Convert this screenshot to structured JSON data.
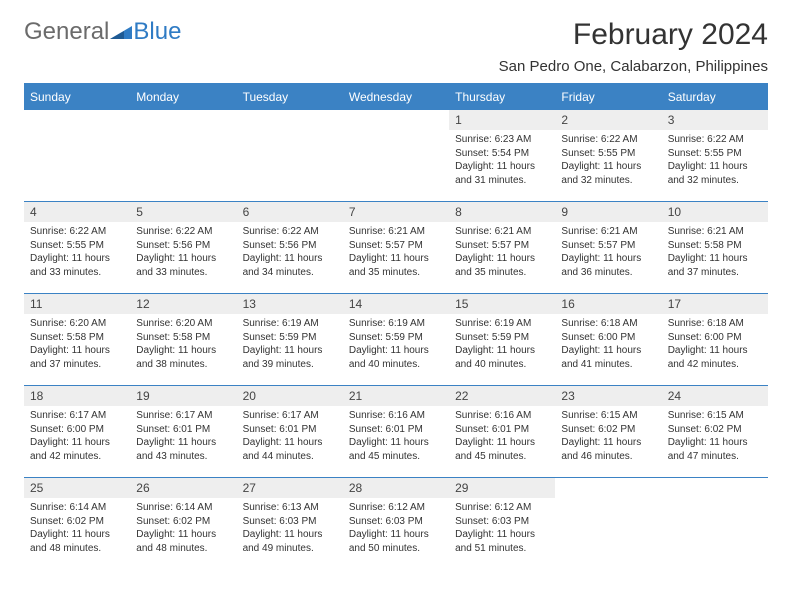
{
  "brand": {
    "word1": "General",
    "word2": "Blue"
  },
  "title": "February 2024",
  "location": "San Pedro One, Calabarzon, Philippines",
  "colors": {
    "header_bg": "#3b82c4",
    "header_text": "#ffffff",
    "daynum_bg": "#eeeeee",
    "border": "#3b82c4",
    "page_bg": "#ffffff",
    "text": "#333333",
    "brand_gray": "#6b6b6b",
    "brand_blue": "#2f7bc4"
  },
  "fonts": {
    "title_pt": 30,
    "location_pt": 15,
    "header_pt": 12,
    "body_pt": 10
  },
  "day_headers": [
    "Sunday",
    "Monday",
    "Tuesday",
    "Wednesday",
    "Thursday",
    "Friday",
    "Saturday"
  ],
  "weeks": [
    [
      {
        "n": "",
        "sunrise": "",
        "sunset": "",
        "daylight": ""
      },
      {
        "n": "",
        "sunrise": "",
        "sunset": "",
        "daylight": ""
      },
      {
        "n": "",
        "sunrise": "",
        "sunset": "",
        "daylight": ""
      },
      {
        "n": "",
        "sunrise": "",
        "sunset": "",
        "daylight": ""
      },
      {
        "n": "1",
        "sunrise": "Sunrise: 6:23 AM",
        "sunset": "Sunset: 5:54 PM",
        "daylight": "Daylight: 11 hours and 31 minutes."
      },
      {
        "n": "2",
        "sunrise": "Sunrise: 6:22 AM",
        "sunset": "Sunset: 5:55 PM",
        "daylight": "Daylight: 11 hours and 32 minutes."
      },
      {
        "n": "3",
        "sunrise": "Sunrise: 6:22 AM",
        "sunset": "Sunset: 5:55 PM",
        "daylight": "Daylight: 11 hours and 32 minutes."
      }
    ],
    [
      {
        "n": "4",
        "sunrise": "Sunrise: 6:22 AM",
        "sunset": "Sunset: 5:55 PM",
        "daylight": "Daylight: 11 hours and 33 minutes."
      },
      {
        "n": "5",
        "sunrise": "Sunrise: 6:22 AM",
        "sunset": "Sunset: 5:56 PM",
        "daylight": "Daylight: 11 hours and 33 minutes."
      },
      {
        "n": "6",
        "sunrise": "Sunrise: 6:22 AM",
        "sunset": "Sunset: 5:56 PM",
        "daylight": "Daylight: 11 hours and 34 minutes."
      },
      {
        "n": "7",
        "sunrise": "Sunrise: 6:21 AM",
        "sunset": "Sunset: 5:57 PM",
        "daylight": "Daylight: 11 hours and 35 minutes."
      },
      {
        "n": "8",
        "sunrise": "Sunrise: 6:21 AM",
        "sunset": "Sunset: 5:57 PM",
        "daylight": "Daylight: 11 hours and 35 minutes."
      },
      {
        "n": "9",
        "sunrise": "Sunrise: 6:21 AM",
        "sunset": "Sunset: 5:57 PM",
        "daylight": "Daylight: 11 hours and 36 minutes."
      },
      {
        "n": "10",
        "sunrise": "Sunrise: 6:21 AM",
        "sunset": "Sunset: 5:58 PM",
        "daylight": "Daylight: 11 hours and 37 minutes."
      }
    ],
    [
      {
        "n": "11",
        "sunrise": "Sunrise: 6:20 AM",
        "sunset": "Sunset: 5:58 PM",
        "daylight": "Daylight: 11 hours and 37 minutes."
      },
      {
        "n": "12",
        "sunrise": "Sunrise: 6:20 AM",
        "sunset": "Sunset: 5:58 PM",
        "daylight": "Daylight: 11 hours and 38 minutes."
      },
      {
        "n": "13",
        "sunrise": "Sunrise: 6:19 AM",
        "sunset": "Sunset: 5:59 PM",
        "daylight": "Daylight: 11 hours and 39 minutes."
      },
      {
        "n": "14",
        "sunrise": "Sunrise: 6:19 AM",
        "sunset": "Sunset: 5:59 PM",
        "daylight": "Daylight: 11 hours and 40 minutes."
      },
      {
        "n": "15",
        "sunrise": "Sunrise: 6:19 AM",
        "sunset": "Sunset: 5:59 PM",
        "daylight": "Daylight: 11 hours and 40 minutes."
      },
      {
        "n": "16",
        "sunrise": "Sunrise: 6:18 AM",
        "sunset": "Sunset: 6:00 PM",
        "daylight": "Daylight: 11 hours and 41 minutes."
      },
      {
        "n": "17",
        "sunrise": "Sunrise: 6:18 AM",
        "sunset": "Sunset: 6:00 PM",
        "daylight": "Daylight: 11 hours and 42 minutes."
      }
    ],
    [
      {
        "n": "18",
        "sunrise": "Sunrise: 6:17 AM",
        "sunset": "Sunset: 6:00 PM",
        "daylight": "Daylight: 11 hours and 42 minutes."
      },
      {
        "n": "19",
        "sunrise": "Sunrise: 6:17 AM",
        "sunset": "Sunset: 6:01 PM",
        "daylight": "Daylight: 11 hours and 43 minutes."
      },
      {
        "n": "20",
        "sunrise": "Sunrise: 6:17 AM",
        "sunset": "Sunset: 6:01 PM",
        "daylight": "Daylight: 11 hours and 44 minutes."
      },
      {
        "n": "21",
        "sunrise": "Sunrise: 6:16 AM",
        "sunset": "Sunset: 6:01 PM",
        "daylight": "Daylight: 11 hours and 45 minutes."
      },
      {
        "n": "22",
        "sunrise": "Sunrise: 6:16 AM",
        "sunset": "Sunset: 6:01 PM",
        "daylight": "Daylight: 11 hours and 45 minutes."
      },
      {
        "n": "23",
        "sunrise": "Sunrise: 6:15 AM",
        "sunset": "Sunset: 6:02 PM",
        "daylight": "Daylight: 11 hours and 46 minutes."
      },
      {
        "n": "24",
        "sunrise": "Sunrise: 6:15 AM",
        "sunset": "Sunset: 6:02 PM",
        "daylight": "Daylight: 11 hours and 47 minutes."
      }
    ],
    [
      {
        "n": "25",
        "sunrise": "Sunrise: 6:14 AM",
        "sunset": "Sunset: 6:02 PM",
        "daylight": "Daylight: 11 hours and 48 minutes."
      },
      {
        "n": "26",
        "sunrise": "Sunrise: 6:14 AM",
        "sunset": "Sunset: 6:02 PM",
        "daylight": "Daylight: 11 hours and 48 minutes."
      },
      {
        "n": "27",
        "sunrise": "Sunrise: 6:13 AM",
        "sunset": "Sunset: 6:03 PM",
        "daylight": "Daylight: 11 hours and 49 minutes."
      },
      {
        "n": "28",
        "sunrise": "Sunrise: 6:12 AM",
        "sunset": "Sunset: 6:03 PM",
        "daylight": "Daylight: 11 hours and 50 minutes."
      },
      {
        "n": "29",
        "sunrise": "Sunrise: 6:12 AM",
        "sunset": "Sunset: 6:03 PM",
        "daylight": "Daylight: 11 hours and 51 minutes."
      },
      {
        "n": "",
        "sunrise": "",
        "sunset": "",
        "daylight": ""
      },
      {
        "n": "",
        "sunrise": "",
        "sunset": "",
        "daylight": ""
      }
    ]
  ]
}
